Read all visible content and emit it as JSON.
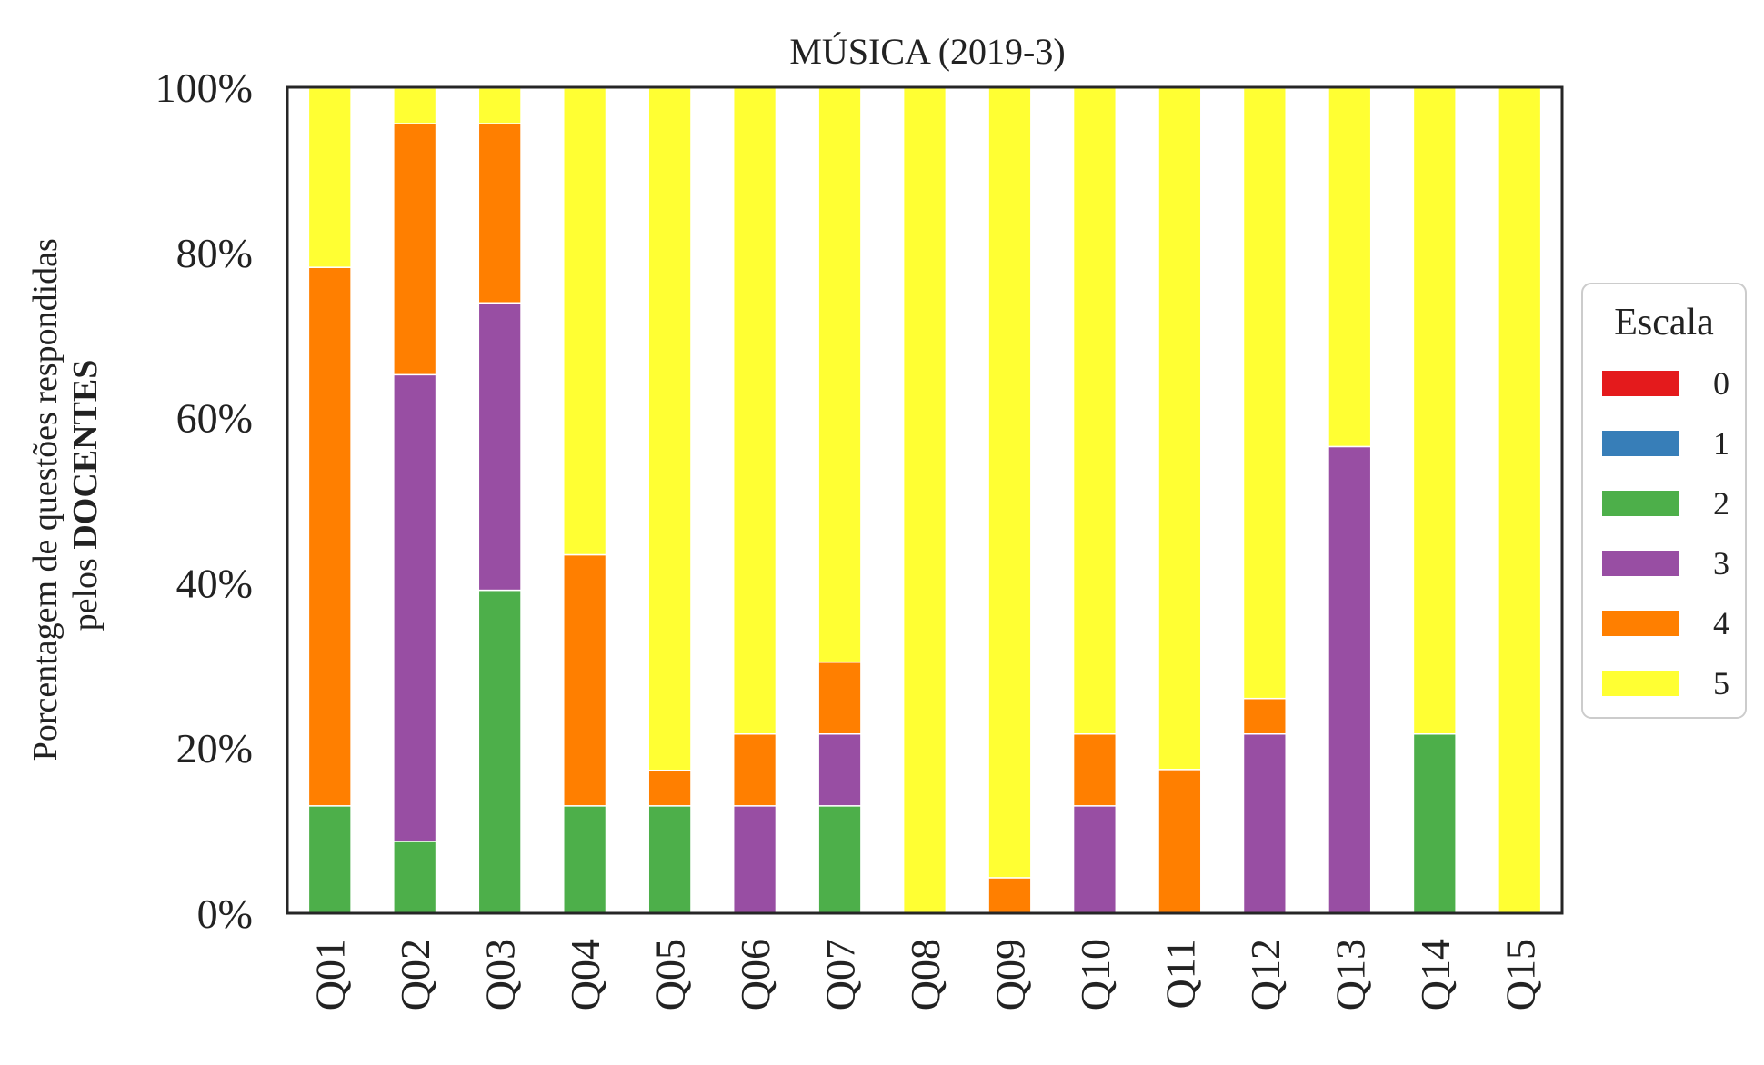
{
  "chart_data": {
    "type": "bar",
    "stacked": true,
    "title": "MÚSICA (2019-3)",
    "ylabel_line1": "Porcentagem de questões respondidas",
    "ylabel_line2_prefix": "pelos ",
    "ylabel_line2_bold": "DOCENTES",
    "xlabel": "",
    "ylim": [
      0,
      100
    ],
    "yticks": [
      0,
      20,
      40,
      60,
      80,
      100
    ],
    "ytick_labels": [
      "0%",
      "20%",
      "40%",
      "60%",
      "80%",
      "100%"
    ],
    "categories": [
      "Q01",
      "Q02",
      "Q03",
      "Q04",
      "Q05",
      "Q06",
      "Q07",
      "Q08",
      "Q09",
      "Q10",
      "Q11",
      "Q12",
      "Q13",
      "Q14",
      "Q15"
    ],
    "legend": {
      "title": "Escala",
      "position": "right"
    },
    "series": [
      {
        "name": "0",
        "color": "#e41a1c",
        "values": [
          0,
          0,
          0,
          0,
          0,
          0,
          0,
          0,
          0,
          0,
          0,
          0,
          0,
          0,
          0
        ]
      },
      {
        "name": "1",
        "color": "#377eb8",
        "values": [
          0,
          0,
          0,
          0,
          0,
          0,
          0,
          0,
          0,
          0,
          0,
          0,
          0,
          0,
          0
        ]
      },
      {
        "name": "2",
        "color": "#4daf4a",
        "values": [
          13.0,
          8.7,
          39.1,
          13.0,
          13.0,
          0,
          13.0,
          0,
          0,
          0,
          0,
          0,
          0,
          21.7,
          0
        ]
      },
      {
        "name": "3",
        "color": "#984ea3",
        "values": [
          0,
          56.5,
          34.8,
          0,
          0,
          13.0,
          8.7,
          0,
          0,
          13.0,
          0,
          21.7,
          56.5,
          0,
          0
        ]
      },
      {
        "name": "4",
        "color": "#ff7f00",
        "values": [
          65.2,
          30.4,
          21.7,
          30.4,
          4.3,
          8.7,
          8.7,
          0,
          4.3,
          8.7,
          17.4,
          4.3,
          0,
          0,
          0
        ]
      },
      {
        "name": "5",
        "color": "#ffff33",
        "values": [
          21.7,
          4.3,
          4.3,
          56.5,
          82.6,
          78.3,
          69.6,
          100,
          95.7,
          78.3,
          82.6,
          73.9,
          43.5,
          78.3,
          100
        ]
      }
    ]
  }
}
